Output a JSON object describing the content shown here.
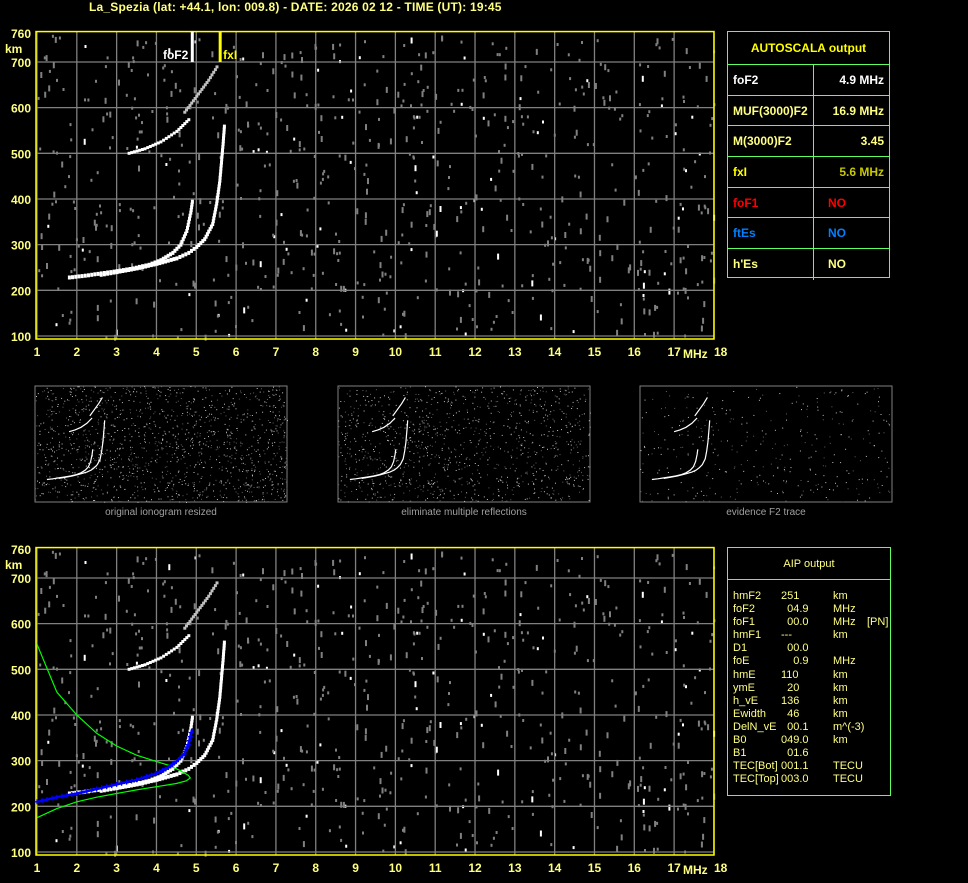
{
  "header": {
    "title": "La_Spezia (lat: +44.1, lon: 009.8) - DATE: 2026 02 12 - TIME (UT): 19:45"
  },
  "colors": {
    "frame": "#ffff00",
    "grid": "#808080",
    "axis_text": "#ffff80",
    "table_border": "#60ff60",
    "profile": "#00ff00",
    "fit": "#0000ff",
    "trace": "#ffffff",
    "noise": "#808080"
  },
  "autoscala": {
    "title": "AUTOSCALA output",
    "rows": [
      {
        "label": "foF2",
        "value": "4.9 MHz",
        "label_color": "#ffffff",
        "value_color": "#ffffff"
      },
      {
        "label": "MUF(3000)F2",
        "value": "16.9 MHz",
        "label_color": "#ffff80",
        "value_color": "#ffff80"
      },
      {
        "label": "M(3000)F2",
        "value": "3.45",
        "label_color": "#ffff80",
        "value_color": "#ffff80"
      },
      {
        "label": "fxI",
        "value": "5.6 MHz",
        "label_color": "#ffff00",
        "value_color": "#c8c800"
      },
      {
        "label": "foF1",
        "value": "NO",
        "label_color": "#ff0000",
        "value_color": "#ff0000"
      },
      {
        "label": "ftEs",
        "value": "NO",
        "label_color": "#0080ff",
        "value_color": "#0080ff"
      },
      {
        "label": "h'Es",
        "value": "NO",
        "label_color": "#ffff80",
        "value_color": "#ffff80"
      }
    ]
  },
  "aip": {
    "title": "AIP output",
    "rows": [
      {
        "k": "hmF2",
        "v": "251",
        "u": "km",
        "x": ""
      },
      {
        "k": "foF2",
        "v": "  04.9",
        "u": "MHz",
        "x": ""
      },
      {
        "k": "foF1",
        "v": "  00.0",
        "u": "MHz",
        "x": "[PN]"
      },
      {
        "k": "hmF1",
        "v": "---",
        "u": "km",
        "x": ""
      },
      {
        "k": "D1",
        "v": "  00.0",
        "u": "",
        "x": ""
      },
      {
        "k": "foE",
        "v": "    0.9",
        "u": "MHz",
        "x": ""
      },
      {
        "k": "hmE",
        "v": "110",
        "u": "km",
        "x": ""
      },
      {
        "k": "ymE",
        "v": "  20",
        "u": "km",
        "x": ""
      },
      {
        "k": "h_vE",
        "v": "136",
        "u": "km",
        "x": ""
      },
      {
        "k": "Ewidth",
        "v": "  46",
        "u": "km",
        "x": ""
      },
      {
        "k": "DelN_vE",
        "v": "  00.1",
        "u": "m^(-3)",
        "x": ""
      },
      {
        "k": "B0",
        "v": "049.0",
        "u": "km",
        "x": ""
      },
      {
        "k": "B1",
        "v": "  01.6",
        "u": "",
        "x": ""
      },
      {
        "k": "TEC[Bot]",
        "v": "001.1",
        "u": "TECU",
        "x": ""
      },
      {
        "k": "TEC[Top]",
        "v": "003.0",
        "u": "TECU",
        "x": ""
      }
    ]
  },
  "thumbnails": [
    {
      "caption": "original ionogram resized"
    },
    {
      "caption": "eliminate multiple reflections"
    },
    {
      "caption": "evidence F2 trace"
    }
  ],
  "chart_data": [
    {
      "type": "scatter",
      "name": "ionogram",
      "xlabel": "MHz",
      "ylabel": "km",
      "xlim": [
        1,
        18
      ],
      "ylim": [
        100,
        760
      ],
      "x_ticks": [
        "1",
        "2",
        "3",
        "4",
        "5",
        "6",
        "7",
        "8",
        "9",
        "10",
        "11",
        "12",
        "13",
        "14",
        "15",
        "16",
        "17",
        "18"
      ],
      "y_ticks": [
        "100",
        "200",
        "300",
        "400",
        "500",
        "600",
        "700",
        "760"
      ],
      "grid": true,
      "markers": [
        {
          "label": "foF2",
          "freq": 4.9,
          "color": "#ffffff"
        },
        {
          "label": "fxI",
          "freq": 5.6,
          "color": "#ffff00"
        }
      ],
      "traces": {
        "o_trace": [
          [
            1.8,
            228
          ],
          [
            2.2,
            232
          ],
          [
            2.6,
            237
          ],
          [
            3,
            242
          ],
          [
            3.4,
            248
          ],
          [
            3.8,
            256
          ],
          [
            4.1,
            266
          ],
          [
            4.4,
            282
          ],
          [
            4.6,
            300
          ],
          [
            4.75,
            330
          ],
          [
            4.85,
            370
          ],
          [
            4.9,
            400
          ]
        ],
        "x_trace": [
          [
            2.6,
            234
          ],
          [
            3,
            240
          ],
          [
            3.5,
            248
          ],
          [
            4,
            258
          ],
          [
            4.5,
            270
          ],
          [
            4.8,
            282
          ],
          [
            5,
            295
          ],
          [
            5.2,
            312
          ],
          [
            5.4,
            345
          ],
          [
            5.5,
            390
          ],
          [
            5.58,
            440
          ],
          [
            5.62,
            480
          ],
          [
            5.66,
            520
          ],
          [
            5.7,
            565
          ]
        ],
        "second_hop": [
          [
            3.3,
            500
          ],
          [
            3.7,
            510
          ],
          [
            4.1,
            525
          ],
          [
            4.5,
            548
          ],
          [
            4.85,
            578
          ]
        ],
        "second_hop_x": [
          [
            4.7,
            590
          ],
          [
            5,
            625
          ],
          [
            5.3,
            660
          ],
          [
            5.55,
            695
          ]
        ]
      }
    },
    {
      "type": "line",
      "name": "ionogram-with-profile",
      "xlabel": "MHz",
      "ylabel": "km",
      "xlim": [
        1,
        18
      ],
      "ylim": [
        100,
        760
      ],
      "grid": true,
      "series": [
        {
          "role": "profile",
          "color": "#00ff00",
          "points": [
            [
              1,
              555
            ],
            [
              1.5,
              450
            ],
            [
              2,
              400
            ],
            [
              2.5,
              360
            ],
            [
              3,
              332
            ],
            [
              3.5,
              312
            ],
            [
              4,
              298
            ],
            [
              4.3,
              290
            ],
            [
              4.6,
              278
            ],
            [
              4.8,
              268
            ],
            [
              4.85,
              262
            ],
            [
              4.75,
              256
            ],
            [
              4.5,
              250
            ],
            [
              4,
              243
            ],
            [
              3.5,
              236
            ],
            [
              3,
              228
            ],
            [
              2.5,
              220
            ],
            [
              2,
              210
            ],
            [
              1.5,
              195
            ],
            [
              1,
              175
            ]
          ]
        },
        {
          "role": "fit",
          "color": "#0000ff",
          "points": [
            [
              1,
              210
            ],
            [
              1.5,
              220
            ],
            [
              2,
              228
            ],
            [
              2.5,
              238
            ],
            [
              3,
              248
            ],
            [
              3.5,
              258
            ],
            [
              4,
              272
            ],
            [
              4.3,
              285
            ],
            [
              4.5,
              298
            ],
            [
              4.7,
              315
            ],
            [
              4.8,
              335
            ],
            [
              4.9,
              370
            ]
          ]
        }
      ]
    }
  ]
}
